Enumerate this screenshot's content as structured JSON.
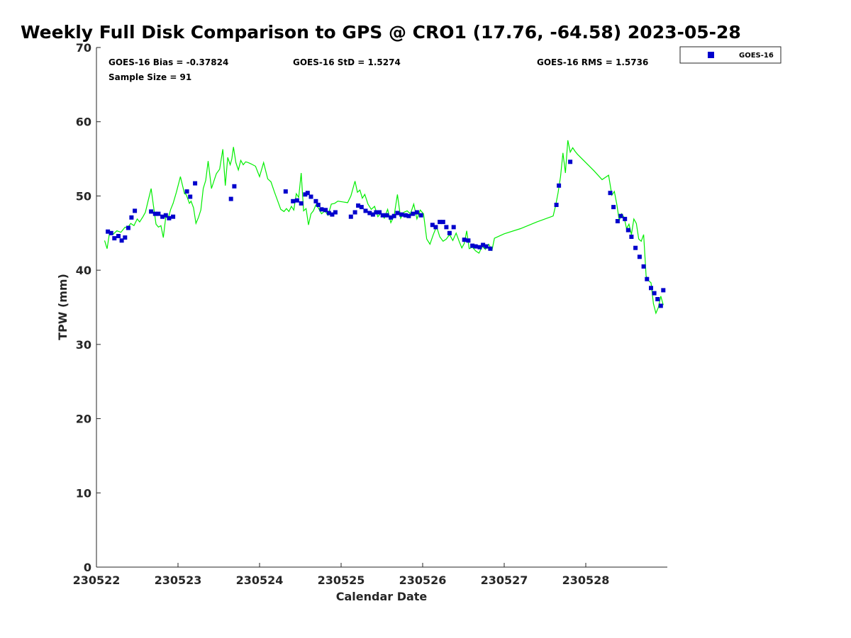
{
  "chart_data": {
    "type": "scatter",
    "title": "Weekly Full Disk Comparison to GPS @ CRO1 (17.76, -64.58) 2023-05-28",
    "xlabel": "Calendar Date",
    "ylabel": "TPW (mm)",
    "xlim": [
      230522,
      230529
    ],
    "ylim": [
      0,
      70
    ],
    "x_ticks": [
      "230522",
      "230523",
      "230524",
      "230525",
      "230526",
      "230527",
      "230528"
    ],
    "y_ticks": [
      "0",
      "10",
      "20",
      "30",
      "40",
      "50",
      "60",
      "70"
    ],
    "grid": false,
    "legend_position": "top-right",
    "stats": {
      "bias": "GOES-16 Bias = -0.37824",
      "std": "GOES-16 StD = 1.5274",
      "rms": "GOES-16 RMS = 1.5736",
      "sample": "Sample Size = 91"
    },
    "series": [
      {
        "name": "GOES-16",
        "kind": "scatter",
        "color": "#0000cc",
        "x": [
          230522.14,
          230522.18,
          230522.22,
          230522.27,
          230522.31,
          230522.35,
          230522.39,
          230522.43,
          230522.47,
          230522.67,
          230522.72,
          230522.76,
          230522.81,
          230522.85,
          230522.89,
          230522.94,
          230523.11,
          230523.15,
          230523.21,
          230523.65,
          230523.69,
          230524.32,
          230524.41,
          230524.46,
          230524.51,
          230524.56,
          230524.59,
          230524.63,
          230524.69,
          230524.72,
          230524.76,
          230524.81,
          230524.85,
          230524.89,
          230524.93,
          230525.12,
          230525.17,
          230525.21,
          230525.25,
          230525.3,
          230525.35,
          230525.39,
          230525.43,
          230525.47,
          230525.51,
          230525.56,
          230525.61,
          230525.65,
          230525.69,
          230525.74,
          230525.79,
          230525.83,
          230525.88,
          230525.93,
          230525.98,
          230526.12,
          230526.16,
          230526.21,
          230526.25,
          230526.29,
          230526.33,
          230526.38,
          230526.51,
          230526.56,
          230526.61,
          230526.65,
          230526.7,
          230526.74,
          230526.78,
          230526.83,
          230527.64,
          230527.67,
          230527.81,
          230528.3,
          230528.34,
          230528.39,
          230528.43,
          230528.48,
          230528.52,
          230528.56,
          230528.61,
          230528.66,
          230528.71,
          230528.75,
          230528.8,
          230528.84,
          230528.88,
          230528.92,
          230528.95
        ],
        "y": [
          45.2,
          45.0,
          44.3,
          44.6,
          44.0,
          44.4,
          45.7,
          47.1,
          48.0,
          47.9,
          47.6,
          47.6,
          47.2,
          47.4,
          47.0,
          47.2,
          50.6,
          49.9,
          51.7,
          49.6,
          51.3,
          50.6,
          49.3,
          49.4,
          49.0,
          50.2,
          50.4,
          49.9,
          49.3,
          48.8,
          48.2,
          48.1,
          47.7,
          47.5,
          47.8,
          47.2,
          47.8,
          48.7,
          48.5,
          48.0,
          47.7,
          47.5,
          47.8,
          47.8,
          47.4,
          47.4,
          47.1,
          47.3,
          47.7,
          47.5,
          47.4,
          47.3,
          47.6,
          47.8,
          47.4,
          46.1,
          45.8,
          46.5,
          46.5,
          45.8,
          45.0,
          45.8,
          44.1,
          44.0,
          43.3,
          43.2,
          43.1,
          43.4,
          43.2,
          42.9,
          48.8,
          51.4,
          54.6,
          50.4,
          48.5,
          46.6,
          47.3,
          46.9,
          45.4,
          44.5,
          43.0,
          41.8,
          40.5,
          38.8,
          37.6,
          36.9,
          36.1,
          35.2,
          37.3
        ]
      },
      {
        "name": "",
        "kind": "line",
        "color": "#00ee00",
        "x": [
          230522.1,
          230522.13,
          230522.16,
          230522.2,
          230522.25,
          230522.3,
          230522.35,
          230522.38,
          230522.42,
          230522.46,
          230522.5,
          230522.53,
          230522.57,
          230522.6,
          230522.63,
          230522.67,
          230522.7,
          230522.73,
          230522.76,
          230522.79,
          230522.82,
          230522.85,
          230522.88,
          230522.91,
          230522.94,
          230522.98,
          230523.03,
          230523.08,
          230523.1,
          230523.12,
          230523.14,
          230523.16,
          230523.19,
          230523.22,
          230523.25,
          230523.28,
          230523.31,
          230523.34,
          230523.37,
          230523.41,
          230523.44,
          230523.47,
          230523.51,
          230523.55,
          230523.58,
          230523.61,
          230523.64,
          230523.66,
          230523.68,
          230523.71,
          230523.74,
          230523.77,
          230523.8,
          230523.83,
          230523.86,
          230523.9,
          230523.95,
          230524.0,
          230524.05,
          230524.1,
          230524.14,
          230524.18,
          230524.22,
          230524.26,
          230524.3,
          230524.33,
          230524.36,
          230524.39,
          230524.42,
          230524.45,
          230524.48,
          230524.51,
          230524.54,
          230524.57,
          230524.6,
          230524.63,
          230524.66,
          230524.69,
          230524.72,
          230524.76,
          230524.8,
          230524.84,
          230524.88,
          230524.92,
          230524.96,
          230525.02,
          230525.08,
          230525.12,
          230525.17,
          230525.2,
          230525.23,
          230525.26,
          230525.29,
          230525.33,
          230525.37,
          230525.41,
          230525.45,
          230525.49,
          230525.53,
          230525.57,
          230525.61,
          230525.65,
          230525.69,
          230525.73,
          230525.77,
          230525.81,
          230525.85,
          230525.89,
          230525.93,
          230525.97,
          230526.01,
          230526.05,
          230526.09,
          230526.13,
          230526.17,
          230526.21,
          230526.25,
          230526.29,
          230526.33,
          230526.37,
          230526.41,
          230526.45,
          230526.48,
          230526.51,
          230526.54,
          230526.57,
          230526.61,
          230526.65,
          230526.69,
          230526.73,
          230526.77,
          230526.81,
          230526.85,
          230526.88,
          230527.0,
          230527.2,
          230527.4,
          230527.6,
          230527.63,
          230527.66,
          230527.69,
          230527.72,
          230527.75,
          230527.78,
          230527.81,
          230527.84,
          230527.87,
          230527.9,
          230528.0,
          230528.1,
          230528.2,
          230528.28,
          230528.32,
          230528.35,
          230528.38,
          230528.41,
          230528.44,
          230528.47,
          230528.5,
          230528.53,
          230528.56,
          230528.59,
          230528.62,
          230528.65,
          230528.68,
          230528.71,
          230528.74,
          230528.77,
          230528.8,
          230528.83,
          230528.86,
          230528.89,
          230528.92,
          230528.95
        ],
        "y": [
          44.0,
          42.9,
          45.0,
          44.8,
          45.3,
          45.1,
          45.8,
          45.7,
          46.3,
          46.0,
          46.9,
          46.5,
          47.2,
          47.8,
          49.2,
          51.0,
          48.6,
          46.2,
          45.8,
          46.0,
          44.4,
          47.2,
          47.0,
          48.2,
          49.0,
          50.5,
          52.6,
          50.3,
          50.2,
          49.6,
          49.0,
          49.3,
          48.4,
          46.3,
          47.1,
          48.1,
          51.0,
          52.1,
          54.7,
          51.0,
          52.0,
          53.0,
          53.6,
          56.3,
          51.4,
          55.2,
          54.2,
          55.0,
          56.6,
          54.5,
          53.5,
          54.8,
          54.2,
          54.6,
          54.5,
          54.3,
          54.0,
          52.6,
          54.5,
          52.3,
          51.9,
          50.6,
          49.4,
          48.2,
          47.9,
          48.3,
          47.9,
          48.6,
          48.1,
          50.3,
          49.8,
          53.1,
          48.0,
          48.3,
          46.1,
          47.6,
          48.0,
          48.8,
          48.4,
          47.6,
          48.0,
          47.4,
          48.9,
          49.0,
          49.3,
          49.2,
          49.1,
          50.0,
          52.0,
          50.5,
          50.8,
          49.7,
          50.2,
          48.9,
          48.2,
          48.6,
          47.2,
          47.7,
          47.0,
          48.2,
          46.4,
          47.3,
          50.2,
          47.0,
          47.8,
          48.0,
          47.6,
          48.9,
          46.9,
          48.1,
          47.6,
          44.2,
          43.5,
          44.8,
          45.9,
          44.5,
          43.9,
          44.2,
          44.8,
          44.0,
          45.0,
          43.8,
          43.0,
          43.6,
          45.3,
          42.9,
          43.1,
          42.6,
          42.3,
          43.2,
          42.8,
          43.5,
          42.7,
          44.3,
          44.9,
          45.6,
          46.5,
          47.3,
          48.7,
          50.4,
          52.6,
          55.8,
          53.1,
          57.5,
          55.9,
          56.5,
          56.0,
          55.6,
          54.5,
          53.4,
          52.2,
          52.8,
          50.1,
          50.6,
          48.9,
          46.7,
          47.6,
          47.1,
          45.6,
          46.2,
          44.8,
          46.9,
          46.3,
          44.2,
          43.9,
          44.8,
          39.2,
          38.6,
          38.3,
          35.5,
          34.2,
          35.0,
          36.5,
          35.3
        ]
      }
    ]
  }
}
